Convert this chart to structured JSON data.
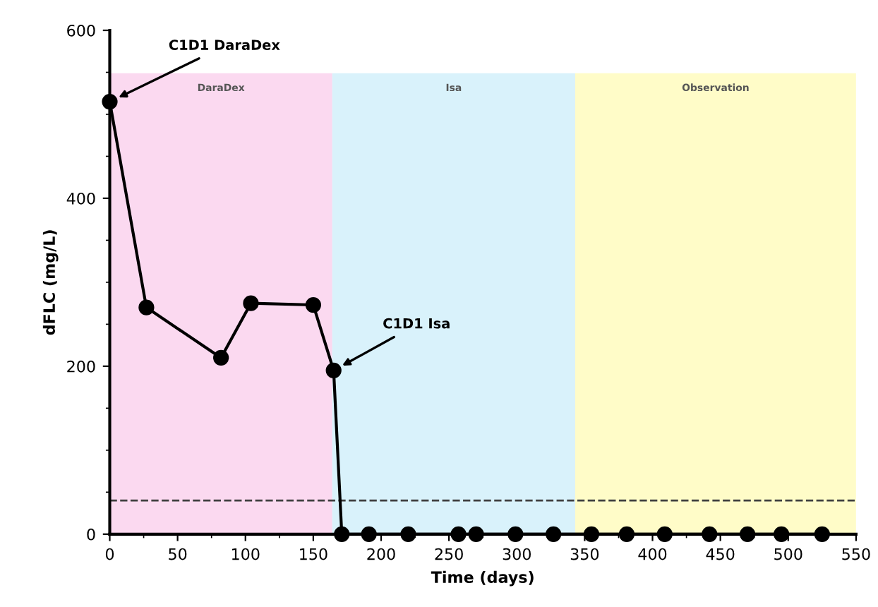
{
  "chart_data": {
    "type": "line",
    "xlabel": "Time (days)",
    "ylabel": "dFLC (mg/L)",
    "series": [
      {
        "color": "#000000",
        "x": [
          0,
          27,
          82,
          104,
          150,
          165,
          171,
          191,
          220,
          257,
          270,
          299,
          327,
          355,
          381,
          409,
          442,
          470,
          495,
          525
        ],
        "values": [
          515,
          270,
          210,
          275,
          273,
          195,
          0,
          0,
          0,
          0,
          0,
          0,
          0,
          0,
          0,
          0,
          0,
          0,
          0,
          0
        ]
      }
    ],
    "marker": "circle",
    "line_style": "solid",
    "grid": false,
    "legend": false,
    "xlim": [
      0,
      550
    ],
    "xticks": [
      0,
      50,
      100,
      150,
      200,
      250,
      300,
      350,
      400,
      450,
      500,
      550
    ],
    "ylim": [
      0,
      600
    ],
    "yticks": [
      0,
      200,
      400,
      600
    ],
    "ref_lines": [
      {
        "axis": "y",
        "value": 40,
        "color": "#404040",
        "line_style": "dashed"
      }
    ],
    "bands": [
      {
        "axis": "x",
        "from": 0,
        "to": 164,
        "label": "DaraDex",
        "color": "#fbd9f0"
      },
      {
        "axis": "x",
        "from": 164,
        "to": 343,
        "label": "Isa",
        "color": "#d9f2fb"
      },
      {
        "axis": "x",
        "from": 343,
        "to": 550,
        "label": "Observation",
        "color": "#fffcc8"
      }
    ],
    "annotations": [
      {
        "text": "C1D1 DaraDex",
        "x": 0,
        "y": 515
      },
      {
        "text": "C1D1 Isa",
        "x": 165,
        "y": 195
      }
    ]
  }
}
